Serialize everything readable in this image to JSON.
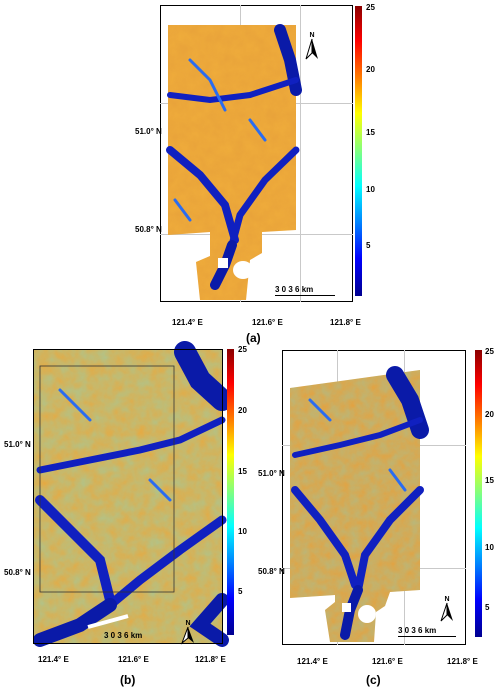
{
  "colorbar": {
    "ticks": [
      "25",
      "20",
      "15",
      "10",
      "5"
    ],
    "stops": [
      "#00008f",
      "#0000ff",
      "#0080ff",
      "#00ffff",
      "#80ff80",
      "#ffff00",
      "#ff8000",
      "#ff0000",
      "#8b0000"
    ]
  },
  "latitudes": [
    "51.0° N",
    "50.8° N"
  ],
  "longitudes": [
    "121.4° E",
    "121.6° E",
    "121.8° E"
  ],
  "scale_bar": {
    "label": "3   0   3   6 km"
  },
  "north_arrow": {
    "letter": "N"
  },
  "panels": {
    "a": {
      "label": "(a)"
    },
    "b": {
      "label": "(b)"
    },
    "c": {
      "label": "(c)"
    }
  }
}
